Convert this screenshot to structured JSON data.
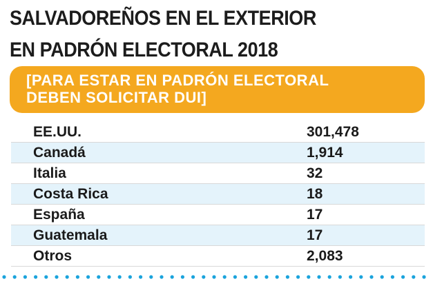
{
  "header": {
    "title_line1": "SALVADOREÑOS EN EL EXTERIOR",
    "title_line2": "EN PADRÓN ELECTORAL 2018"
  },
  "banner": {
    "line1": "[PARA ESTAR EN PADRÓN ELECTORAL",
    "line2": "DEBEN SOLICITAR DUI]"
  },
  "colors": {
    "banner": "#f4a81f",
    "row_alt": "#e4f3fb",
    "dots": "#1aa3dc"
  },
  "chart_data": {
    "type": "table",
    "title": "SALVADOREÑOS EN EL EXTERIOR EN PADRÓN ELECTORAL 2018",
    "subtitle": "[PARA ESTAR EN PADRÓN ELECTORAL DEBEN SOLICITAR DUI]",
    "rows": [
      {
        "country": "EE.UU.",
        "value": "301,478"
      },
      {
        "country": "Canadá",
        "value": "1,914"
      },
      {
        "country": "Italia",
        "value": "32"
      },
      {
        "country": "Costa Rica",
        "value": "18"
      },
      {
        "country": "España",
        "value": "17"
      },
      {
        "country": "Guatemala",
        "value": "17"
      },
      {
        "country": "Otros",
        "value": "2,083"
      }
    ]
  }
}
